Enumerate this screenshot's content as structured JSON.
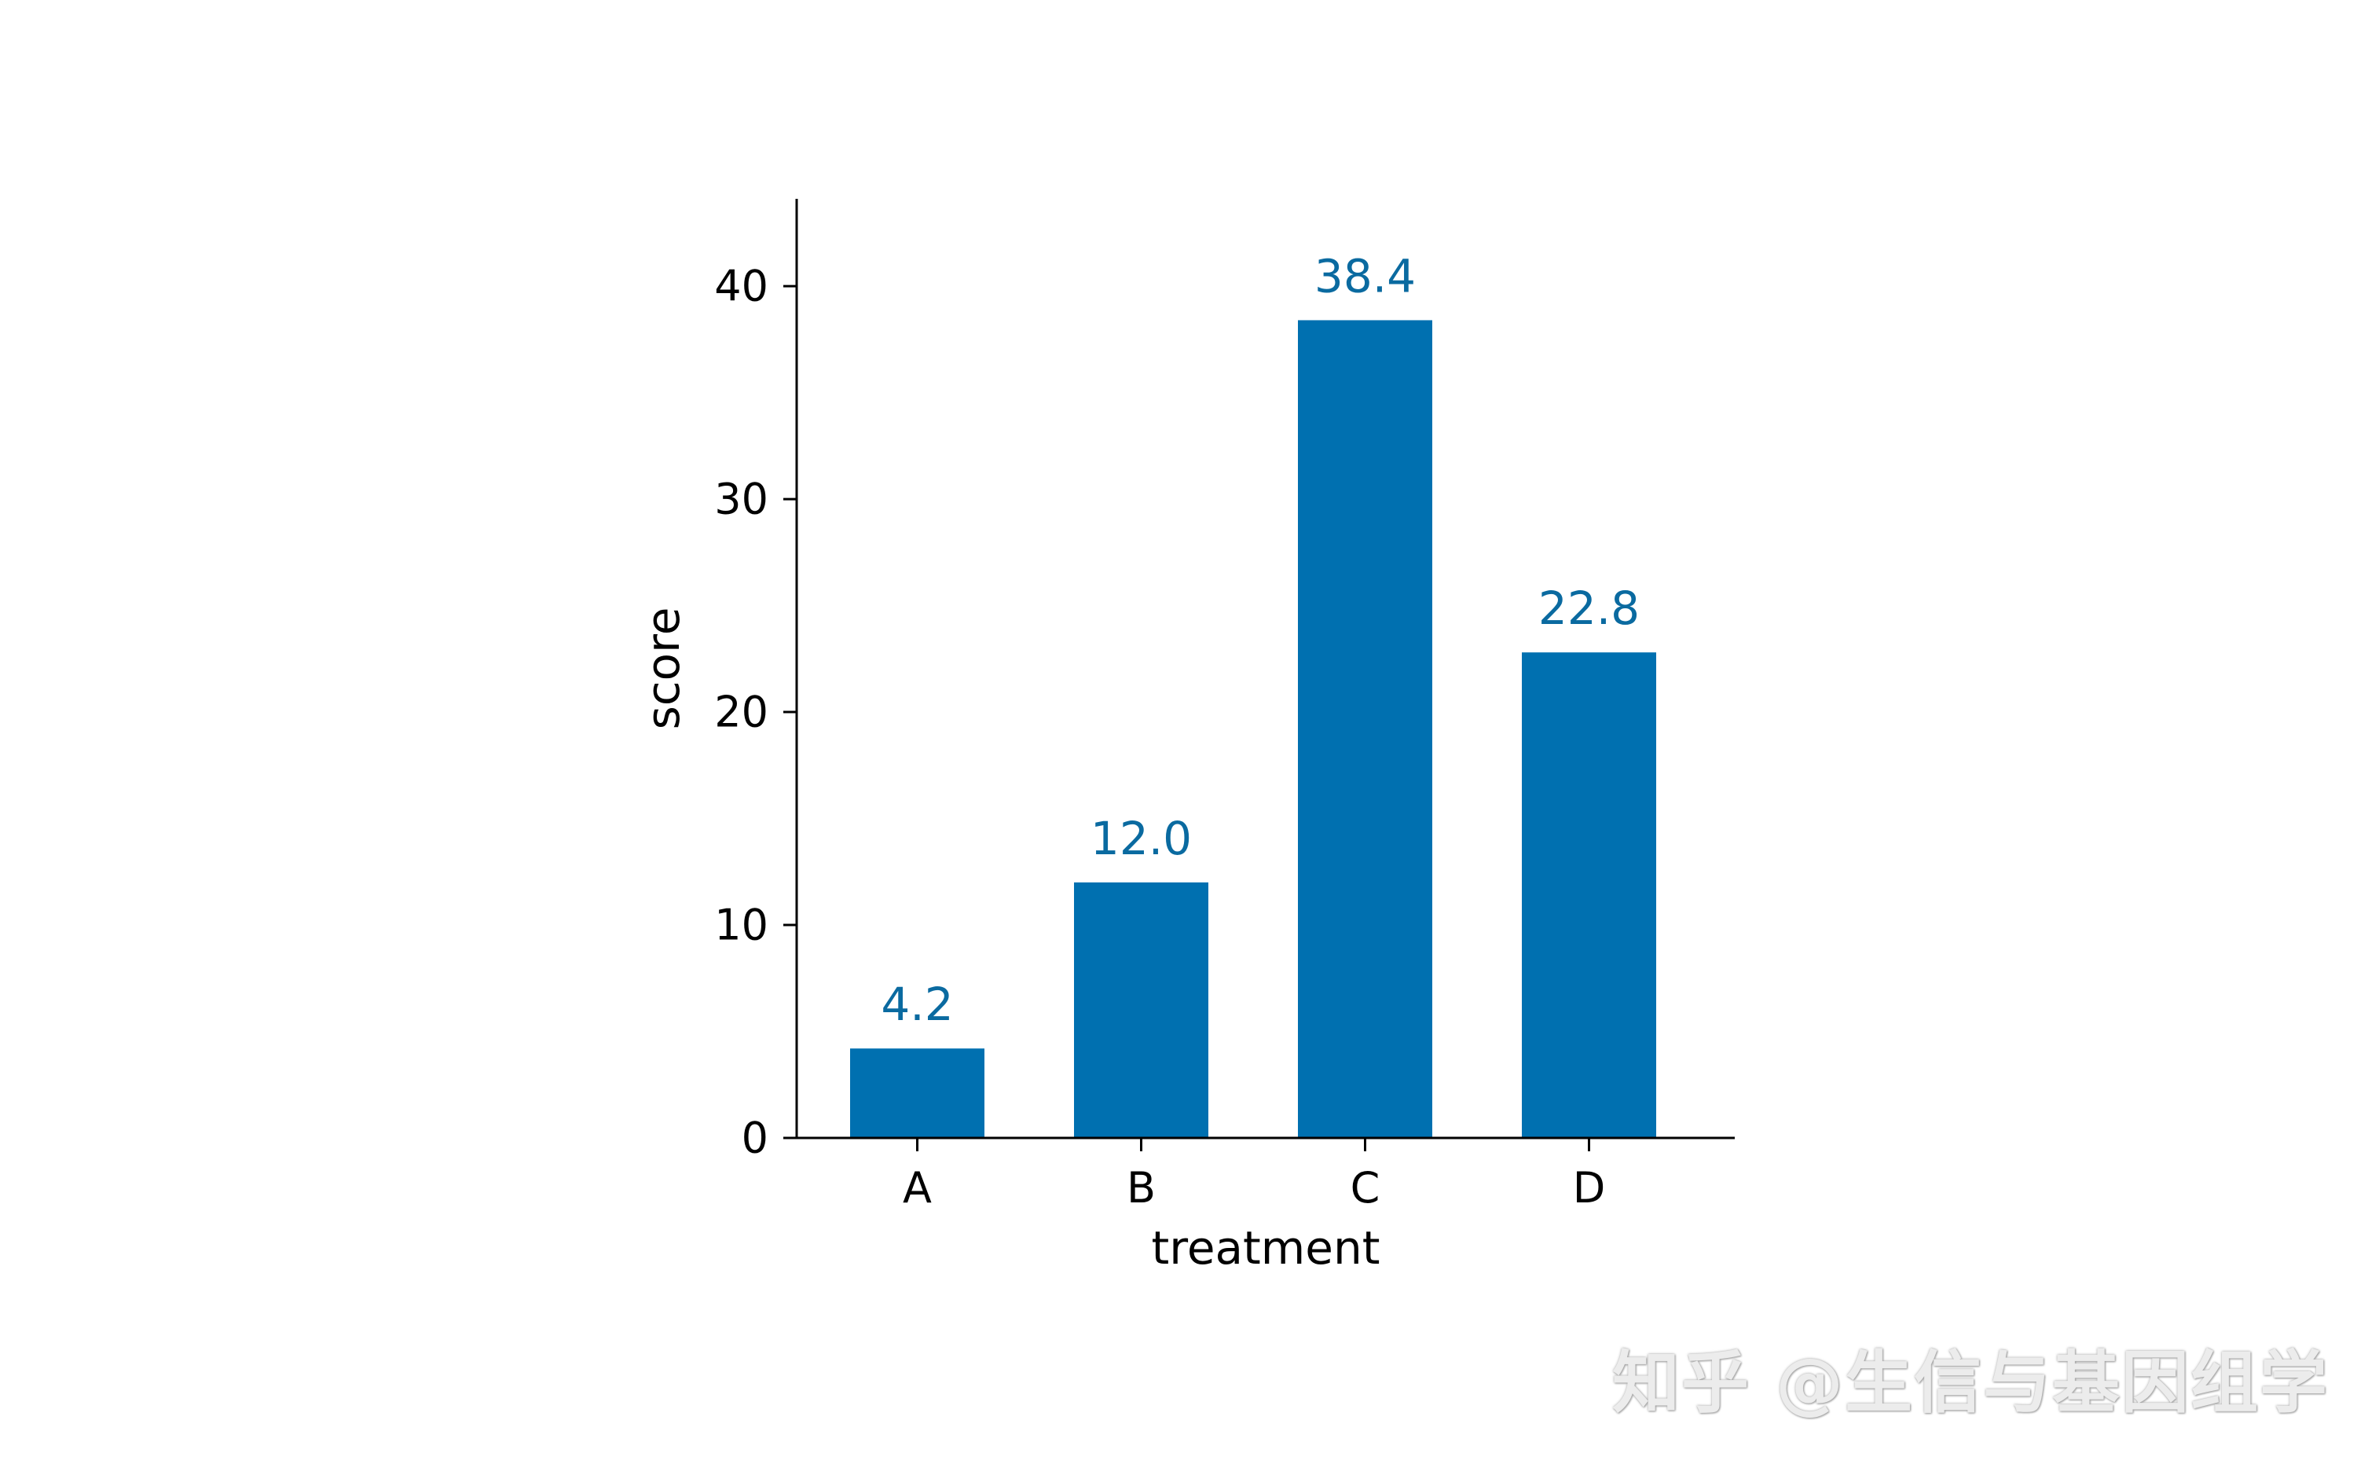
{
  "colors": {
    "bar": "#0070b0",
    "data_label": "#0a6aa0",
    "axis": "#000000",
    "background": "#ffffff"
  },
  "watermark": "知乎 @生信与基因组学",
  "chart_data": {
    "type": "bar",
    "title": "",
    "xlabel": "treatment",
    "ylabel": "score",
    "categories": [
      "A",
      "B",
      "C",
      "D"
    ],
    "values": [
      4.2,
      12.0,
      38.4,
      22.8
    ],
    "value_labels": [
      "4.2",
      "12.0",
      "38.4",
      "22.8"
    ],
    "ylim": [
      0,
      44.1
    ],
    "yticks": [
      0,
      10,
      20,
      30,
      40
    ],
    "ytick_labels": [
      "0",
      "10",
      "20",
      "30",
      "40"
    ],
    "grid": false,
    "legend": "none",
    "spines": [
      "left",
      "bottom"
    ]
  }
}
